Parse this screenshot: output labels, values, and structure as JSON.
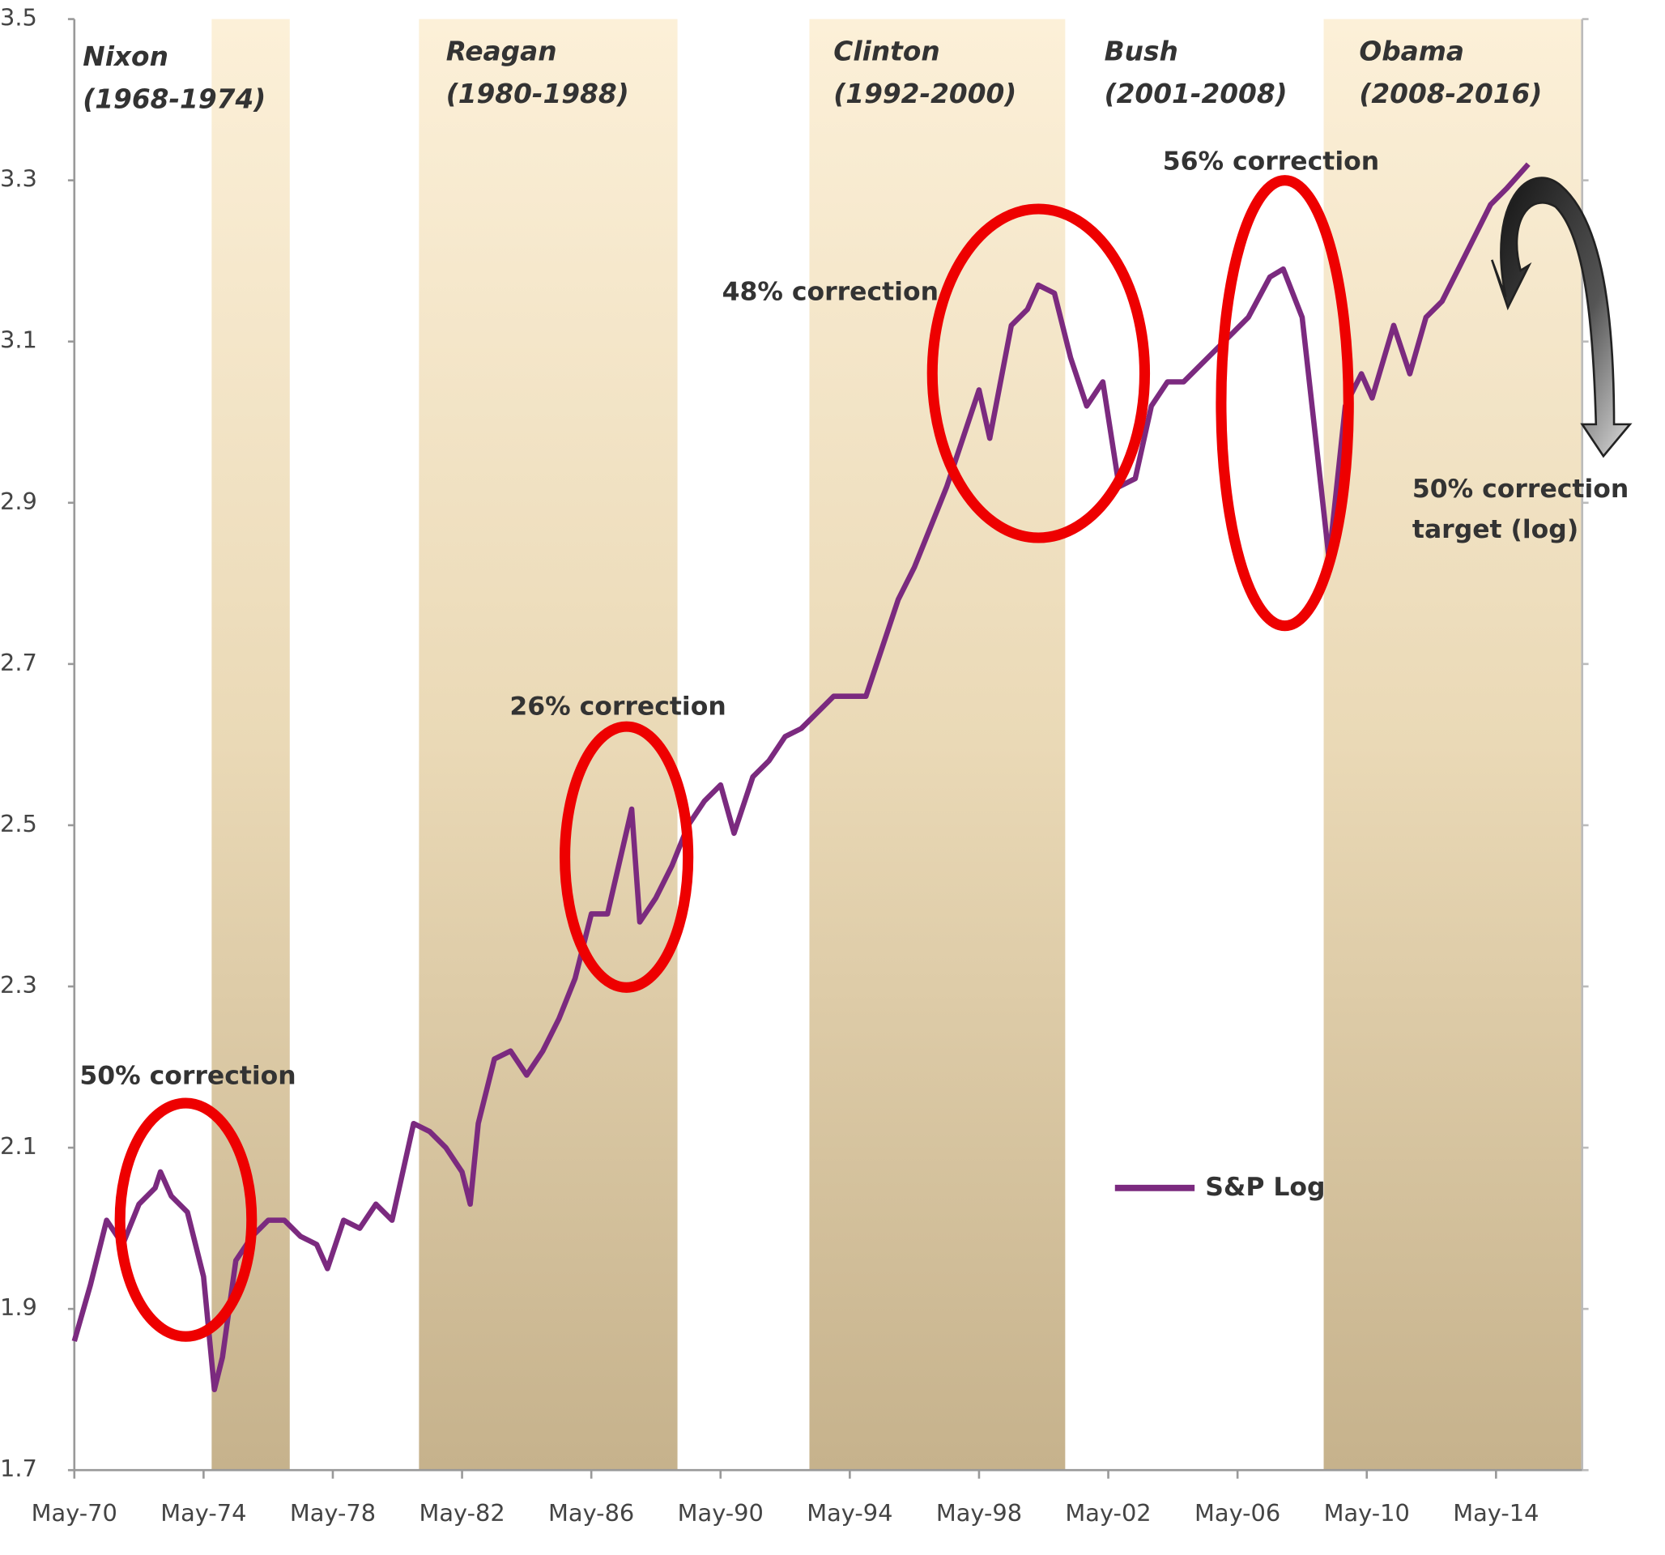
{
  "chart_data": {
    "type": "line",
    "x": [
      "1970-05",
      "1970-11",
      "1971-05",
      "1971-11",
      "1972-05",
      "1972-11",
      "1973-01",
      "1973-05",
      "1973-11",
      "1974-05",
      "1974-09",
      "1974-12",
      "1975-05",
      "1975-11",
      "1976-05",
      "1976-11",
      "1977-05",
      "1977-11",
      "1978-03",
      "1978-09",
      "1979-03",
      "1979-09",
      "1980-03",
      "1980-11",
      "1981-05",
      "1981-11",
      "1982-05",
      "1982-08",
      "1982-11",
      "1983-05",
      "1983-11",
      "1984-05",
      "1984-11",
      "1985-05",
      "1985-11",
      "1986-05",
      "1986-11",
      "1987-08",
      "1987-11",
      "1988-05",
      "1988-11",
      "1989-05",
      "1989-11",
      "1990-05",
      "1990-10",
      "1991-05",
      "1991-11",
      "1992-05",
      "1992-11",
      "1993-05",
      "1993-11",
      "1994-05",
      "1994-11",
      "1995-05",
      "1995-11",
      "1996-05",
      "1996-11",
      "1997-05",
      "1997-11",
      "1998-05",
      "1998-09",
      "1999-05",
      "1999-11",
      "2000-03",
      "2000-09",
      "2001-03",
      "2001-09",
      "2002-03",
      "2002-09",
      "2003-03",
      "2003-09",
      "2004-03",
      "2004-09",
      "2005-03",
      "2005-09",
      "2006-03",
      "2006-09",
      "2007-05",
      "2007-10",
      "2008-05",
      "2008-10",
      "2009-03",
      "2009-09",
      "2010-03",
      "2010-07",
      "2011-03",
      "2011-09",
      "2012-03",
      "2012-09",
      "2013-03",
      "2013-09",
      "2014-03",
      "2014-09",
      "2015-05"
    ],
    "series": [
      {
        "name": "S&P Log",
        "color": "#7b2a7f",
        "values": [
          1.86,
          1.93,
          2.01,
          1.98,
          2.03,
          2.05,
          2.07,
          2.04,
          2.02,
          1.94,
          1.8,
          1.84,
          1.96,
          1.99,
          2.01,
          2.01,
          1.99,
          1.98,
          1.95,
          2.01,
          2.0,
          2.03,
          2.01,
          2.13,
          2.12,
          2.1,
          2.07,
          2.03,
          2.13,
          2.21,
          2.22,
          2.19,
          2.22,
          2.26,
          2.31,
          2.39,
          2.39,
          2.52,
          2.38,
          2.41,
          2.45,
          2.5,
          2.53,
          2.55,
          2.49,
          2.56,
          2.58,
          2.61,
          2.62,
          2.64,
          2.66,
          2.66,
          2.66,
          2.72,
          2.78,
          2.82,
          2.87,
          2.92,
          2.98,
          3.04,
          2.98,
          3.12,
          3.14,
          3.17,
          3.16,
          3.08,
          3.02,
          3.05,
          2.92,
          2.93,
          3.02,
          3.05,
          3.05,
          3.07,
          3.09,
          3.11,
          3.13,
          3.18,
          3.19,
          3.13,
          2.98,
          2.83,
          3.02,
          3.06,
          3.03,
          3.12,
          3.06,
          3.13,
          3.15,
          3.19,
          3.23,
          3.27,
          3.29,
          3.32
        ]
      }
    ],
    "xlim": [
      "1970-05",
      "2017-01"
    ],
    "xticks": [
      {
        "value": "1970-05",
        "label": "May-70"
      },
      {
        "value": "1974-05",
        "label": "May-74"
      },
      {
        "value": "1978-05",
        "label": "May-78"
      },
      {
        "value": "1982-05",
        "label": "May-82"
      },
      {
        "value": "1986-05",
        "label": "May-86"
      },
      {
        "value": "1990-05",
        "label": "May-90"
      },
      {
        "value": "1994-05",
        "label": "May-94"
      },
      {
        "value": "1998-05",
        "label": "May-98"
      },
      {
        "value": "2002-05",
        "label": "May-02"
      },
      {
        "value": "2006-05",
        "label": "May-06"
      },
      {
        "value": "2010-05",
        "label": "May-10"
      },
      {
        "value": "2014-05",
        "label": "May-14"
      }
    ],
    "ylim": [
      1.7,
      3.5
    ],
    "yticks": [
      1.7,
      1.9,
      2.1,
      2.3,
      2.5,
      2.7,
      2.9,
      3.1,
      3.3,
      3.5
    ],
    "shaded_periods": [
      {
        "start": "1974-08",
        "end": "1977-01"
      },
      {
        "start": "1981-01",
        "end": "1989-01"
      },
      {
        "start": "1993-02",
        "end": "2001-01"
      },
      {
        "start": "2009-01",
        "end": "2017-01"
      }
    ],
    "presidents": [
      {
        "name": "Nixon",
        "term": "(1968-1974)"
      },
      {
        "name": "Reagan",
        "term": "(1980-1988)"
      },
      {
        "name": "Clinton",
        "term": "(1992-2000)"
      },
      {
        "name": "Bush",
        "term": "(2001-2008)"
      },
      {
        "name": "Obama",
        "term": "(2008-2016)"
      }
    ],
    "annotations": [
      "50% correction",
      "26% correction",
      "48% correction",
      "56% correction",
      "50% correction",
      "target (log)"
    ]
  }
}
